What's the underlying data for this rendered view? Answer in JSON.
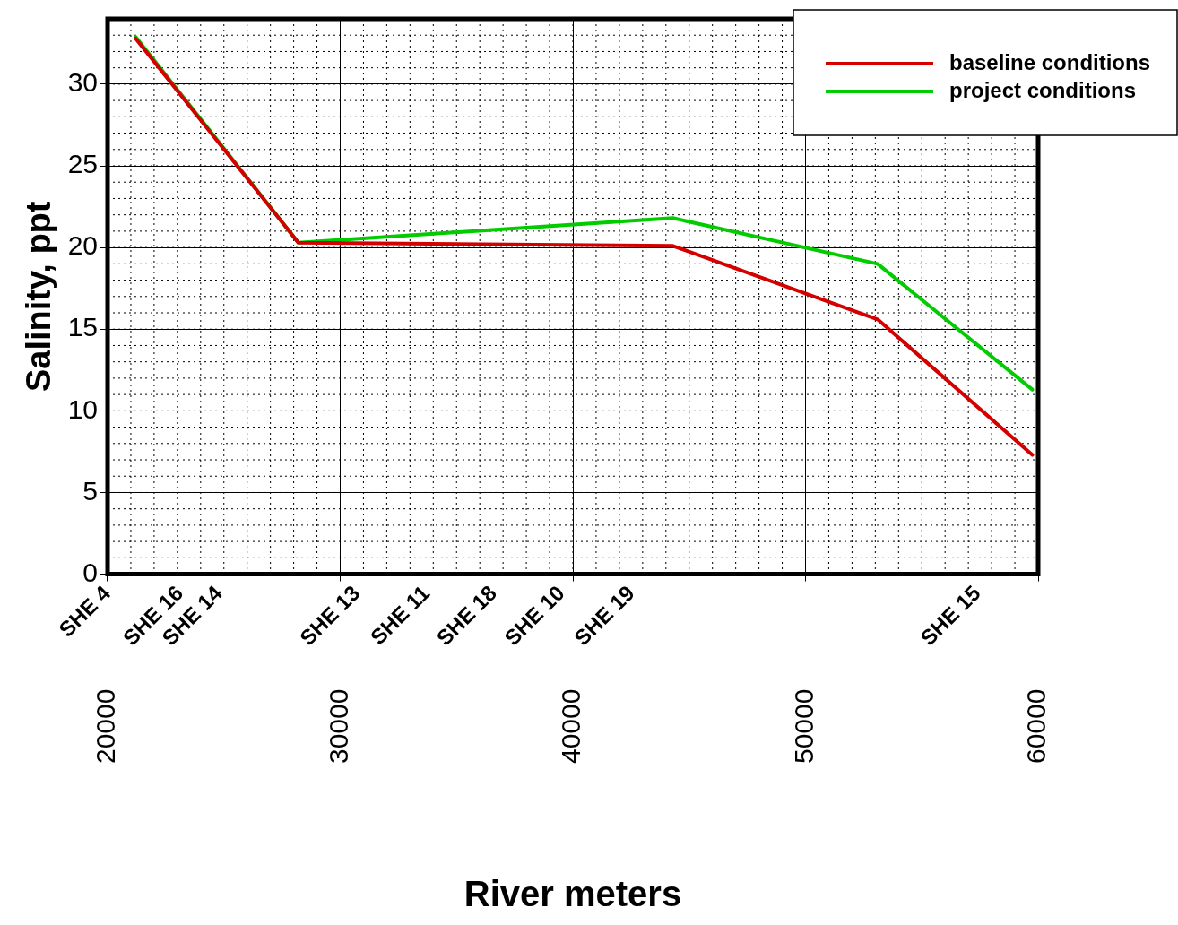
{
  "chart_data": {
    "type": "line",
    "xlabel": "River meters",
    "ylabel": "Salinity, ppt",
    "xlim": [
      20000,
      60000
    ],
    "xticks": [
      20000,
      30000,
      40000,
      50000,
      60000
    ],
    "ylim": [
      0,
      34
    ],
    "yticks": [
      0,
      5,
      10,
      15,
      20,
      25,
      30
    ],
    "grid": true,
    "legend": "top right",
    "marker": "none",
    "line_style": "solid",
    "series": [
      {
        "name": "baseline conditions",
        "color": "#d40000",
        "x": [
          21200,
          28200,
          44300,
          53100,
          59750
        ],
        "values": [
          32.8,
          20.3,
          20.1,
          15.6,
          7.3
        ]
      },
      {
        "name": "project conditions",
        "color": "#00cc00",
        "x": [
          21200,
          28200,
          44300,
          53100,
          59750
        ],
        "values": [
          32.9,
          20.3,
          21.8,
          19.0,
          11.3
        ]
      }
    ],
    "annotations": [
      "SHE 4",
      "SHE 16",
      "SHE 14",
      "SHE 13",
      "SHE 11",
      "SHE 18",
      "SHE 10",
      "SHE 19",
      "SHE 15"
    ]
  }
}
